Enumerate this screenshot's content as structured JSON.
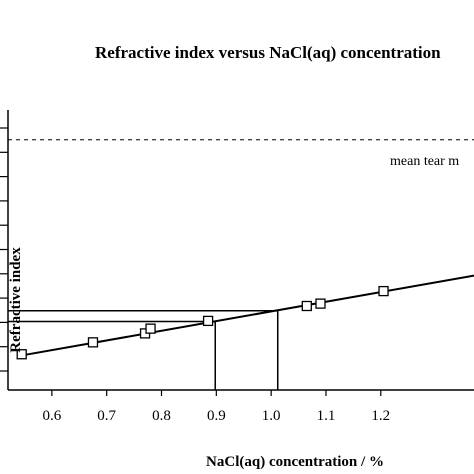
{
  "chart_data": {
    "type": "scatter",
    "title": "Refractive index versus NaCl(aq) concentration",
    "xlabel": "NaCl(aq) concentration / %",
    "ylabel": "Refractive index",
    "xlim": [
      0.52,
      1.37
    ],
    "ylim": [
      1.3334,
      1.3381
    ],
    "x_ticks": [
      0.6,
      0.7,
      0.8,
      0.9,
      1.0,
      1.1,
      1.2
    ],
    "x_tick_labels": [
      "0.6",
      "0.7",
      "0.8",
      "0.9",
      "1.0",
      "1.1",
      "1.2"
    ],
    "series": [
      {
        "marker": "open-square",
        "points": [
          {
            "x": 0.545,
            "y": 1.334
          },
          {
            "x": 0.675,
            "y": 1.3342
          },
          {
            "x": 0.77,
            "y": 1.33435
          },
          {
            "x": 0.78,
            "y": 1.33443
          },
          {
            "x": 0.885,
            "y": 1.33456
          },
          {
            "x": 1.065,
            "y": 1.33481
          },
          {
            "x": 1.09,
            "y": 1.33485
          },
          {
            "x": 1.205,
            "y": 1.33506
          }
        ]
      }
    ],
    "fit_line": {
      "x": [
        0.545,
        1.37
      ],
      "y": [
        1.33398,
        1.33532
      ]
    },
    "reference_line": {
      "label": "mean tear m",
      "y": 1.3376,
      "style": "dashed"
    },
    "guide_lines": [
      {
        "x": 0.898,
        "y": 1.33455
      },
      {
        "x": 1.012,
        "y": 1.33473
      }
    ]
  }
}
